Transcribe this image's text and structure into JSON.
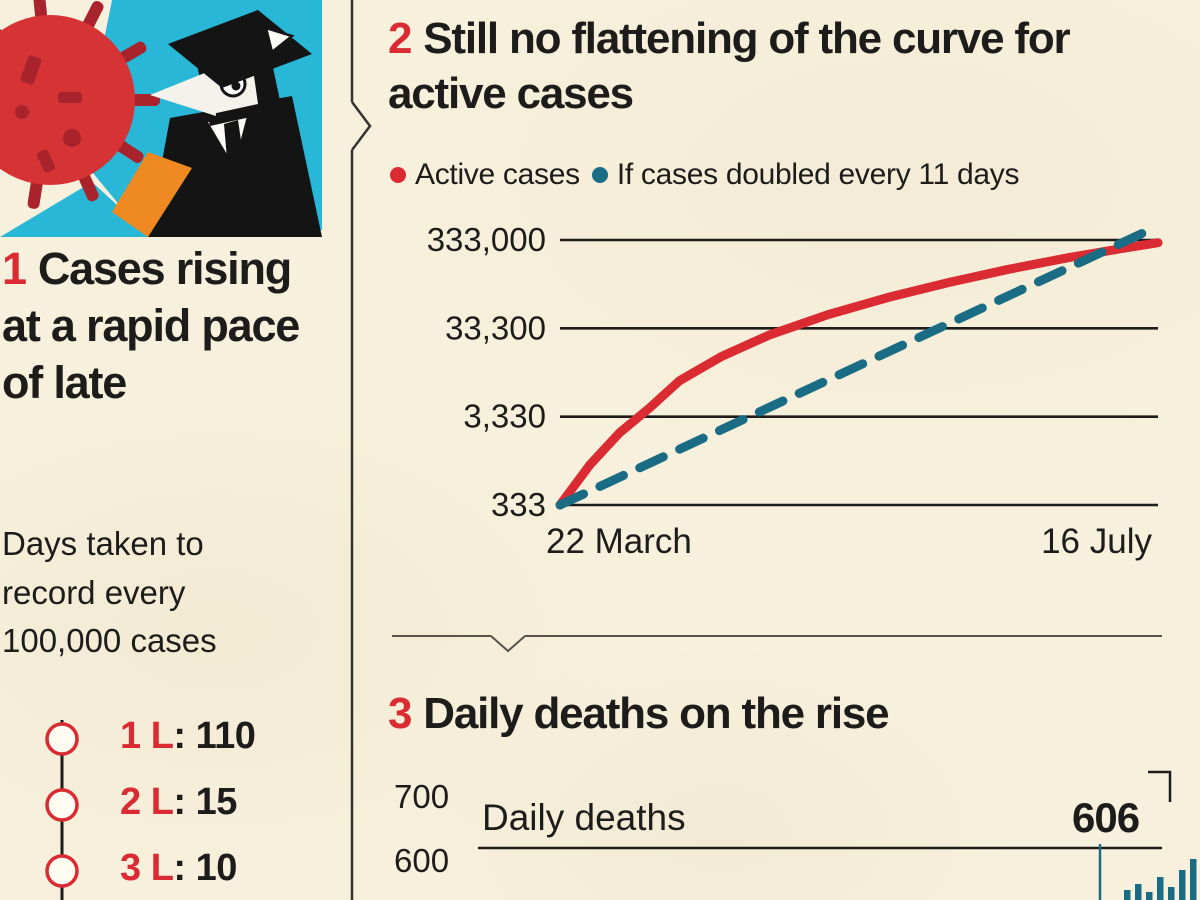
{
  "colors": {
    "red": "#d92b31",
    "teal": "#1a6b84",
    "ink": "#1d1c1a",
    "paper": "#f7f0dc",
    "cyan": "#29b7d8",
    "orange": "#ee8a21"
  },
  "separator": ": ",
  "panel1": {
    "number": "1",
    "title": "Cases rising at a rapid pace of late",
    "subtitle": "Days taken to record every 100,000 cases",
    "timeline": [
      {
        "label": "1 L",
        "value": "110"
      },
      {
        "label": "2 L",
        "value": "15"
      },
      {
        "label": "3 L",
        "value": "10"
      }
    ]
  },
  "panel2": {
    "number": "2",
    "title": "Still no flattening of the curve for active cases",
    "legend": [
      {
        "label": "Active cases",
        "color": "#d92b31"
      },
      {
        "label": "If cases doubled every 11 days",
        "color": "#1a6b84"
      }
    ]
  },
  "panel3": {
    "number": "3",
    "title": "Daily deaths on the rise"
  },
  "chart_data": [
    {
      "id": "active-cases",
      "type": "line",
      "title": "Still no flattening of the curve for active cases",
      "x_axis": {
        "start_label": "22 March",
        "end_label": "16 July"
      },
      "y_axis": {
        "scale": "log",
        "ticks": [
          333,
          3330,
          33300,
          333000
        ],
        "tick_labels": [
          "333",
          "3,330",
          "33,300",
          "333,000"
        ]
      },
      "grid": true,
      "legend_position": "top",
      "series": [
        {
          "name": "Active cases",
          "color": "#d92b31",
          "style": "solid",
          "x": [
            0,
            0.05,
            0.1,
            0.15,
            0.2,
            0.27,
            0.35,
            0.45,
            0.55,
            0.65,
            0.75,
            0.85,
            0.93,
            1
          ],
          "values": [
            333,
            950,
            2200,
            4200,
            8500,
            16000,
            28000,
            48000,
            75000,
            110000,
            155000,
            210000,
            260000,
            310000
          ]
        },
        {
          "name": "If cases doubled every 11 days",
          "color": "#1a6b84",
          "style": "dashed",
          "x": [
            0,
            1
          ],
          "values": [
            333,
            480000
          ]
        }
      ]
    },
    {
      "id": "daily-deaths",
      "type": "bar",
      "label": "Daily deaths",
      "latest_value_label": "606",
      "y_tick_labels": [
        "700",
        "600"
      ],
      "visible_bar_heights": [
        0.2,
        0.32,
        0.16,
        0.46,
        0.26,
        0.6,
        0.82
      ]
    }
  ]
}
